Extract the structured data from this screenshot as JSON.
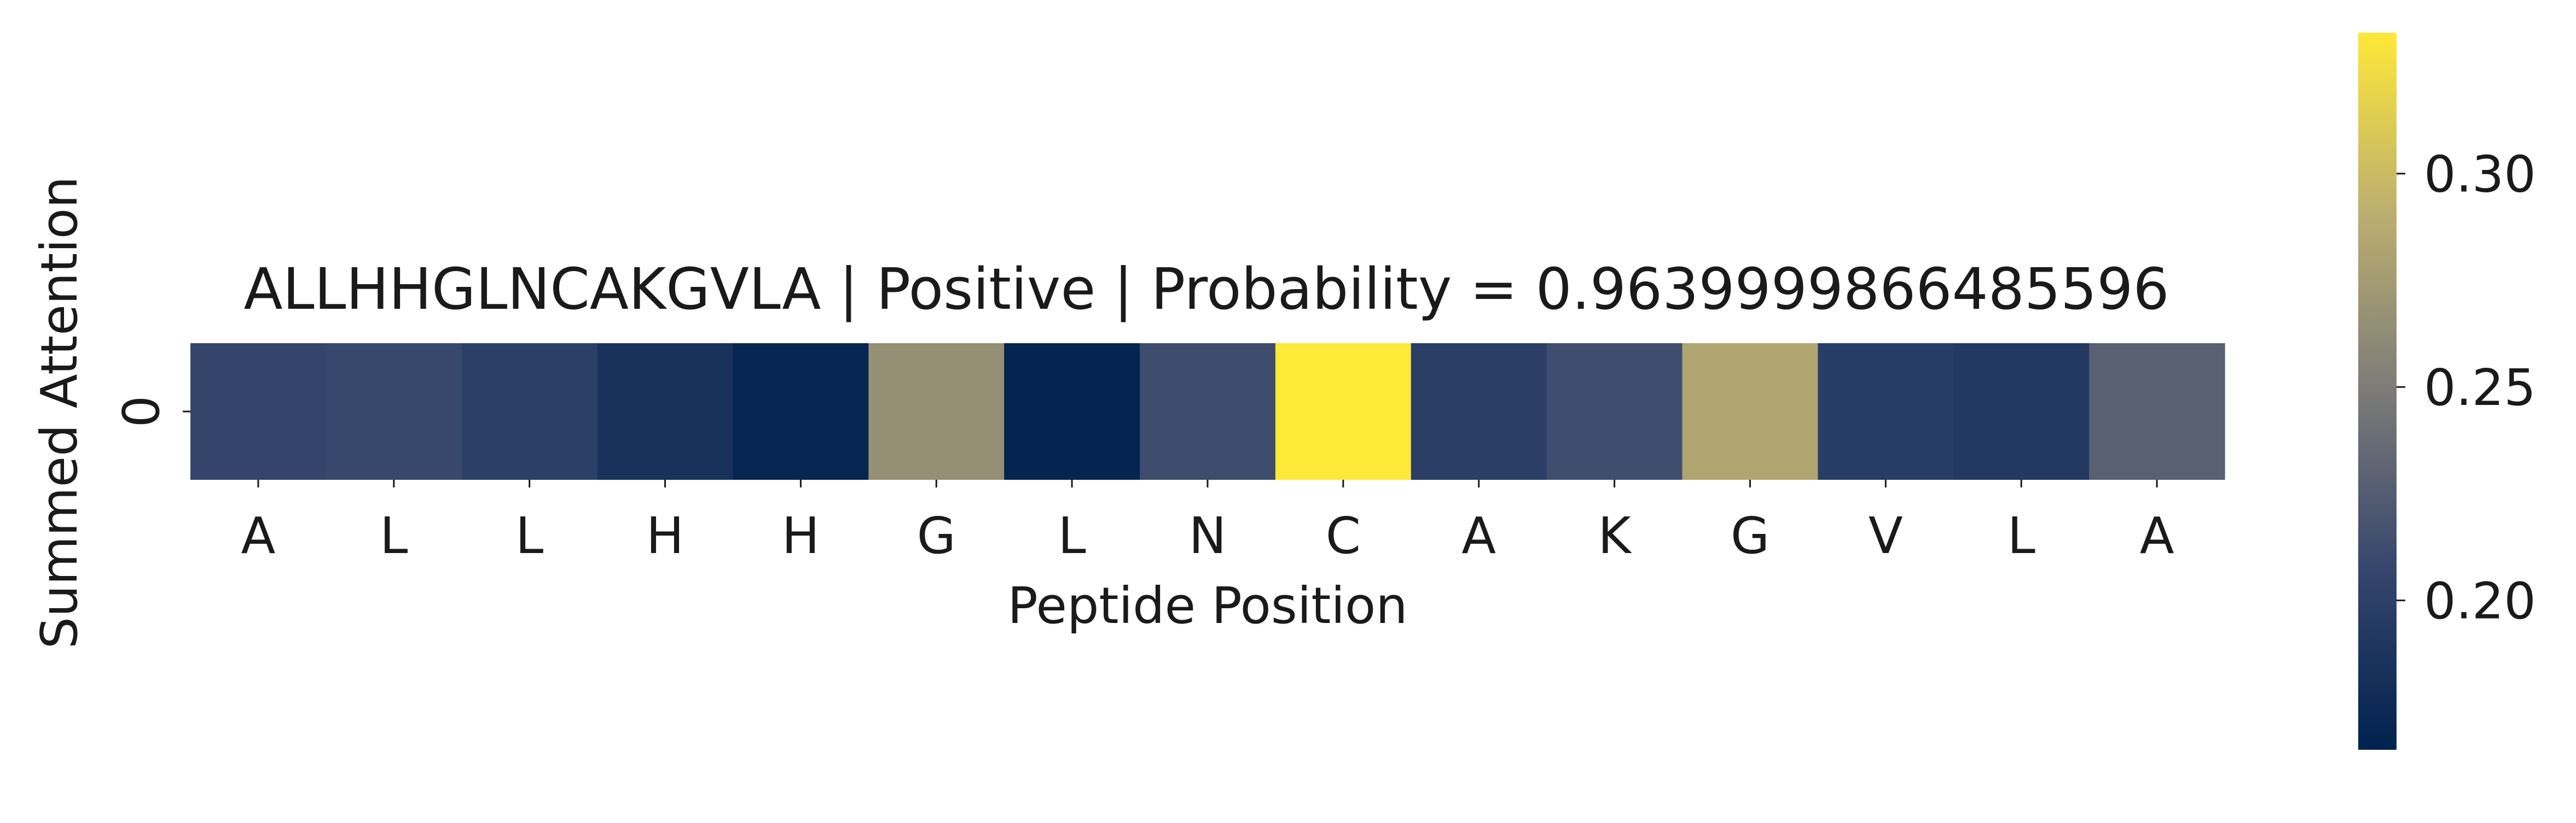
{
  "chart_data": {
    "type": "heatmap",
    "title": "ALLHHGLNCAKGVLA | Positive | Probability = 0.9639999866485596",
    "xlabel": "Peptide Position",
    "ylabel": "Summed Attention",
    "x": [
      "A",
      "L",
      "L",
      "H",
      "H",
      "G",
      "L",
      "N",
      "C",
      "A",
      "K",
      "G",
      "V",
      "L",
      "A"
    ],
    "y": [
      "0"
    ],
    "values": [
      [
        0.206,
        0.209,
        0.2,
        0.184,
        0.17,
        0.265,
        0.168,
        0.212,
        0.333,
        0.199,
        0.213,
        0.283,
        0.197,
        0.193,
        0.228
      ]
    ],
    "colormap": "cividis",
    "colorbar": {
      "range": [
        0.165,
        0.333
      ],
      "ticks": [
        0.2,
        0.25,
        0.3
      ],
      "tick_labels": [
        "0.20",
        "0.25",
        "0.30"
      ],
      "position": "right"
    },
    "grid": false,
    "legend": false
  }
}
